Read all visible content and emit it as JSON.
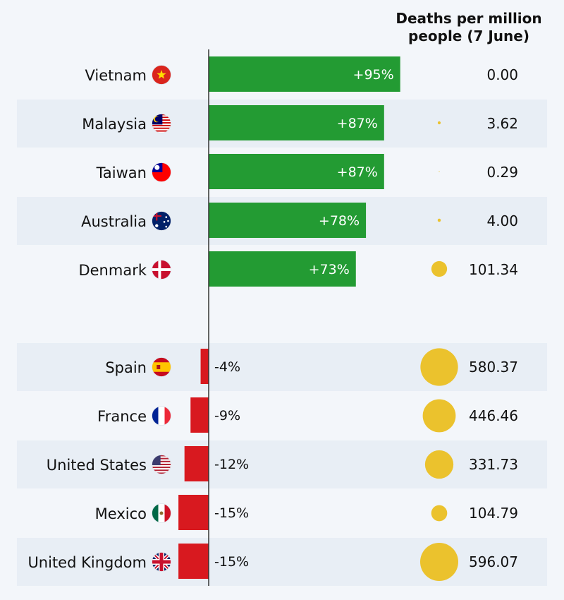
{
  "chart_data": {
    "type": "bar",
    "title": "",
    "xlabel": "",
    "ylabel": "",
    "value_unit": "%",
    "xlim": [
      -20,
      100
    ],
    "grid": false,
    "bubble_column": {
      "header_line1": "Deaths per million",
      "header_line2": "people (7 June)"
    },
    "colors": {
      "positive": "#239b33",
      "negative": "#d8191f",
      "bubble": "#ebc22d",
      "row_band": "#e8eef5",
      "background": "#f3f6fa",
      "axis": "#333333"
    },
    "rows": [
      {
        "country": "Vietnam",
        "flag": "vietnam-flag",
        "change": 95,
        "label": "+95%",
        "deaths": 0.0,
        "deaths_label": "0.00"
      },
      {
        "country": "Malaysia",
        "flag": "malaysia-flag",
        "change": 87,
        "label": "+87%",
        "deaths": 3.62,
        "deaths_label": "3.62"
      },
      {
        "country": "Taiwan",
        "flag": "taiwan-flag",
        "change": 87,
        "label": "+87%",
        "deaths": 0.29,
        "deaths_label": "0.29"
      },
      {
        "country": "Australia",
        "flag": "australia-flag",
        "change": 78,
        "label": "+78%",
        "deaths": 4.0,
        "deaths_label": "4.00"
      },
      {
        "country": "Denmark",
        "flag": "denmark-flag",
        "change": 73,
        "label": "+73%",
        "deaths": 101.34,
        "deaths_label": "101.34"
      },
      {
        "country": "Spain",
        "flag": "spain-flag",
        "change": -4,
        "label": "-4%",
        "deaths": 580.37,
        "deaths_label": "580.37"
      },
      {
        "country": "France",
        "flag": "france-flag",
        "change": -9,
        "label": "-9%",
        "deaths": 446.46,
        "deaths_label": "446.46"
      },
      {
        "country": "United States",
        "flag": "united-states-flag",
        "change": -12,
        "label": "-12%",
        "deaths": 331.73,
        "deaths_label": "331.73"
      },
      {
        "country": "Mexico",
        "flag": "mexico-flag",
        "change": -15,
        "label": "-15%",
        "deaths": 104.79,
        "deaths_label": "104.79"
      },
      {
        "country": "United Kingdom",
        "flag": "united-kingdom-flag",
        "change": -15,
        "label": "-15%",
        "deaths": 596.07,
        "deaths_label": "596.07"
      }
    ]
  }
}
